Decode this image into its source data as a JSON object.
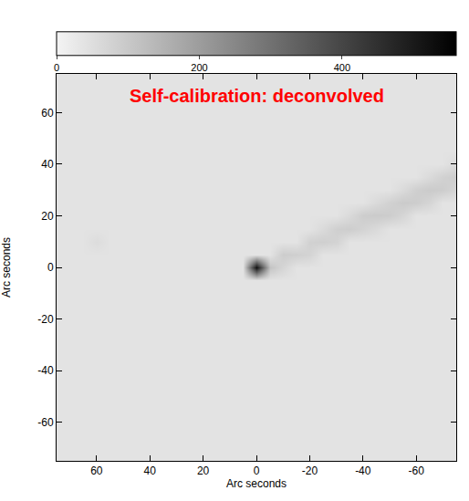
{
  "chart_data": {
    "type": "heatmap",
    "title": "Self-calibration: deconvolved",
    "x_label": "Arc seconds",
    "y_label": "Arc seconds",
    "x": [
      75,
      70,
      65,
      60,
      55,
      50,
      45,
      40,
      35,
      30,
      25,
      20,
      15,
      10,
      5,
      0,
      -5,
      -10,
      -15,
      -20,
      -25,
      -30,
      -35,
      -40,
      -45,
      -50,
      -55,
      -60,
      -65,
      -70,
      -75
    ],
    "y": [
      -75,
      -70,
      -65,
      -60,
      -55,
      -50,
      -45,
      -40,
      -35,
      -30,
      -25,
      -20,
      -15,
      -10,
      -5,
      0,
      5,
      10,
      15,
      20,
      25,
      30,
      35,
      40,
      45,
      50,
      55,
      60,
      65,
      70,
      75
    ],
    "z": [
      [
        40,
        40,
        40,
        40,
        40,
        40,
        40,
        40,
        40,
        40,
        40,
        40,
        40,
        40,
        40,
        40,
        40,
        40,
        40,
        40,
        40,
        40,
        40,
        40,
        40,
        40,
        40,
        40,
        40,
        40,
        40
      ],
      [
        40,
        40,
        40,
        40,
        40,
        40,
        40,
        40,
        40,
        40,
        40,
        40,
        40,
        40,
        40,
        40,
        40,
        40,
        40,
        40,
        40,
        40,
        40,
        40,
        40,
        40,
        40,
        40,
        40,
        40,
        40
      ],
      [
        40,
        40,
        40,
        40,
        40,
        40,
        40,
        40,
        40,
        40,
        40,
        40,
        40,
        40,
        40,
        40,
        40,
        40,
        40,
        40,
        40,
        40,
        40,
        40,
        40,
        40,
        40,
        40,
        40,
        40,
        40
      ],
      [
        40,
        40,
        40,
        40,
        40,
        40,
        40,
        40,
        40,
        40,
        40,
        40,
        40,
        40,
        40,
        40,
        40,
        40,
        40,
        40,
        40,
        40,
        40,
        40,
        40,
        40,
        40,
        40,
        40,
        40,
        40
      ],
      [
        40,
        40,
        40,
        40,
        40,
        40,
        40,
        40,
        40,
        40,
        40,
        40,
        40,
        40,
        40,
        40,
        40,
        40,
        40,
        40,
        40,
        40,
        40,
        40,
        40,
        40,
        40,
        40,
        40,
        40,
        40
      ],
      [
        40,
        40,
        40,
        40,
        40,
        40,
        40,
        40,
        40,
        40,
        40,
        40,
        40,
        40,
        40,
        40,
        40,
        40,
        40,
        40,
        40,
        40,
        40,
        40,
        40,
        40,
        40,
        40,
        40,
        40,
        40
      ],
      [
        40,
        40,
        40,
        40,
        40,
        40,
        40,
        40,
        40,
        40,
        40,
        40,
        40,
        40,
        40,
        40,
        40,
        40,
        40,
        40,
        40,
        40,
        40,
        40,
        40,
        40,
        40,
        40,
        40,
        40,
        40
      ],
      [
        40,
        40,
        40,
        40,
        40,
        40,
        40,
        40,
        40,
        40,
        40,
        40,
        40,
        40,
        40,
        40,
        40,
        40,
        40,
        40,
        40,
        40,
        40,
        40,
        40,
        40,
        40,
        40,
        40,
        40,
        40
      ],
      [
        40,
        40,
        40,
        40,
        40,
        40,
        40,
        40,
        40,
        40,
        40,
        40,
        40,
        40,
        40,
        40,
        40,
        40,
        40,
        40,
        40,
        40,
        40,
        40,
        40,
        40,
        40,
        40,
        40,
        40,
        40
      ],
      [
        40,
        40,
        40,
        40,
        40,
        40,
        40,
        40,
        40,
        40,
        40,
        40,
        40,
        40,
        40,
        40,
        40,
        40,
        40,
        40,
        40,
        40,
        40,
        40,
        40,
        40,
        40,
        40,
        40,
        40,
        40
      ],
      [
        40,
        40,
        40,
        40,
        40,
        40,
        40,
        40,
        40,
        40,
        40,
        40,
        40,
        40,
        40,
        40,
        40,
        40,
        40,
        40,
        40,
        40,
        40,
        40,
        40,
        40,
        40,
        40,
        40,
        40,
        40
      ],
      [
        40,
        40,
        40,
        40,
        40,
        40,
        40,
        40,
        40,
        40,
        40,
        40,
        40,
        40,
        40,
        40,
        40,
        40,
        40,
        40,
        40,
        40,
        40,
        40,
        40,
        40,
        40,
        40,
        40,
        40,
        40
      ],
      [
        40,
        40,
        40,
        40,
        40,
        40,
        40,
        40,
        40,
        40,
        40,
        40,
        40,
        40,
        40,
        40,
        40,
        40,
        40,
        40,
        40,
        40,
        40,
        40,
        40,
        40,
        40,
        40,
        40,
        40,
        40
      ],
      [
        40,
        40,
        40,
        40,
        40,
        40,
        40,
        40,
        40,
        40,
        40,
        40,
        40,
        40,
        40,
        40,
        40,
        40,
        40,
        40,
        40,
        40,
        40,
        40,
        40,
        40,
        40,
        40,
        40,
        40,
        40
      ],
      [
        40,
        40,
        40,
        40,
        40,
        40,
        40,
        40,
        40,
        40,
        40,
        40,
        40,
        40,
        40,
        40,
        40,
        40,
        40,
        40,
        40,
        40,
        40,
        40,
        40,
        40,
        40,
        40,
        40,
        40,
        40
      ],
      [
        40,
        40,
        40,
        40,
        40,
        40,
        40,
        40,
        40,
        40,
        40,
        40,
        40,
        40,
        40,
        520,
        110,
        70,
        40,
        40,
        40,
        40,
        40,
        40,
        40,
        40,
        40,
        40,
        40,
        40,
        40
      ],
      [
        40,
        40,
        40,
        40,
        40,
        40,
        40,
        40,
        40,
        40,
        40,
        40,
        40,
        40,
        40,
        40,
        40,
        90,
        85,
        75,
        40,
        40,
        40,
        40,
        40,
        40,
        40,
        40,
        40,
        40,
        40
      ],
      [
        40,
        40,
        40,
        55,
        40,
        40,
        40,
        40,
        40,
        40,
        40,
        40,
        40,
        40,
        40,
        40,
        40,
        40,
        40,
        80,
        85,
        75,
        40,
        40,
        40,
        40,
        40,
        40,
        40,
        40,
        40
      ],
      [
        40,
        40,
        40,
        40,
        40,
        40,
        40,
        40,
        40,
        40,
        40,
        40,
        40,
        40,
        40,
        40,
        40,
        40,
        40,
        40,
        60,
        85,
        90,
        75,
        60,
        40,
        40,
        40,
        40,
        40,
        40
      ],
      [
        40,
        40,
        40,
        40,
        40,
        40,
        40,
        40,
        40,
        40,
        40,
        40,
        40,
        40,
        40,
        40,
        40,
        40,
        40,
        40,
        40,
        40,
        60,
        90,
        95,
        90,
        70,
        40,
        40,
        40,
        40
      ],
      [
        40,
        40,
        40,
        40,
        40,
        40,
        40,
        40,
        40,
        40,
        40,
        40,
        40,
        40,
        40,
        40,
        40,
        40,
        40,
        40,
        40,
        40,
        40,
        40,
        60,
        80,
        95,
        90,
        70,
        40,
        40
      ],
      [
        40,
        40,
        40,
        40,
        40,
        40,
        40,
        40,
        40,
        40,
        40,
        40,
        40,
        40,
        40,
        40,
        40,
        40,
        40,
        40,
        40,
        40,
        40,
        40,
        40,
        40,
        60,
        85,
        95,
        90,
        70
      ],
      [
        40,
        40,
        40,
        40,
        40,
        40,
        40,
        40,
        40,
        40,
        40,
        40,
        40,
        40,
        40,
        40,
        40,
        40,
        40,
        40,
        40,
        40,
        40,
        40,
        40,
        40,
        40,
        40,
        60,
        80,
        90
      ],
      [
        40,
        40,
        40,
        40,
        40,
        40,
        40,
        40,
        40,
        40,
        40,
        40,
        40,
        40,
        40,
        40,
        40,
        40,
        40,
        40,
        40,
        40,
        40,
        40,
        40,
        40,
        40,
        40,
        40,
        40,
        60
      ],
      [
        40,
        40,
        40,
        40,
        40,
        40,
        40,
        40,
        40,
        40,
        40,
        40,
        40,
        40,
        40,
        40,
        40,
        40,
        40,
        40,
        40,
        40,
        40,
        40,
        40,
        40,
        40,
        40,
        40,
        40,
        40
      ],
      [
        40,
        40,
        40,
        40,
        40,
        40,
        40,
        40,
        40,
        40,
        40,
        40,
        40,
        40,
        40,
        40,
        40,
        40,
        40,
        40,
        40,
        40,
        40,
        40,
        40,
        40,
        40,
        40,
        40,
        40,
        40
      ],
      [
        40,
        40,
        40,
        40,
        40,
        40,
        40,
        40,
        40,
        40,
        40,
        40,
        40,
        40,
        40,
        40,
        40,
        40,
        40,
        40,
        40,
        40,
        40,
        40,
        40,
        40,
        40,
        40,
        40,
        40,
        40
      ],
      [
        40,
        40,
        40,
        40,
        40,
        40,
        40,
        40,
        40,
        40,
        40,
        40,
        40,
        40,
        40,
        40,
        40,
        40,
        40,
        40,
        40,
        40,
        40,
        40,
        40,
        40,
        40,
        40,
        40,
        40,
        40
      ],
      [
        40,
        40,
        40,
        40,
        40,
        40,
        40,
        40,
        40,
        40,
        40,
        40,
        40,
        40,
        40,
        40,
        40,
        40,
        40,
        40,
        40,
        40,
        40,
        40,
        40,
        40,
        40,
        40,
        40,
        40,
        40
      ],
      [
        40,
        40,
        40,
        40,
        40,
        40,
        40,
        40,
        40,
        40,
        40,
        40,
        40,
        40,
        40,
        40,
        40,
        40,
        40,
        40,
        40,
        40,
        40,
        40,
        40,
        40,
        40,
        40,
        40,
        40,
        40
      ],
      [
        40,
        40,
        40,
        40,
        40,
        40,
        40,
        40,
        40,
        40,
        40,
        40,
        40,
        40,
        40,
        40,
        40,
        40,
        40,
        40,
        40,
        40,
        40,
        40,
        40,
        40,
        40,
        40,
        40,
        40,
        40
      ]
    ],
    "xlim": [
      75,
      -75
    ],
    "ylim": [
      -75,
      75
    ],
    "xticks": [
      60,
      40,
      20,
      0,
      -20,
      -40,
      -60
    ],
    "yticks": [
      -60,
      -40,
      -20,
      0,
      20,
      40,
      60
    ],
    "colorbar_range": [
      0,
      560
    ],
    "colorbar_ticks": [
      0,
      200,
      400
    ],
    "grid": false
  }
}
